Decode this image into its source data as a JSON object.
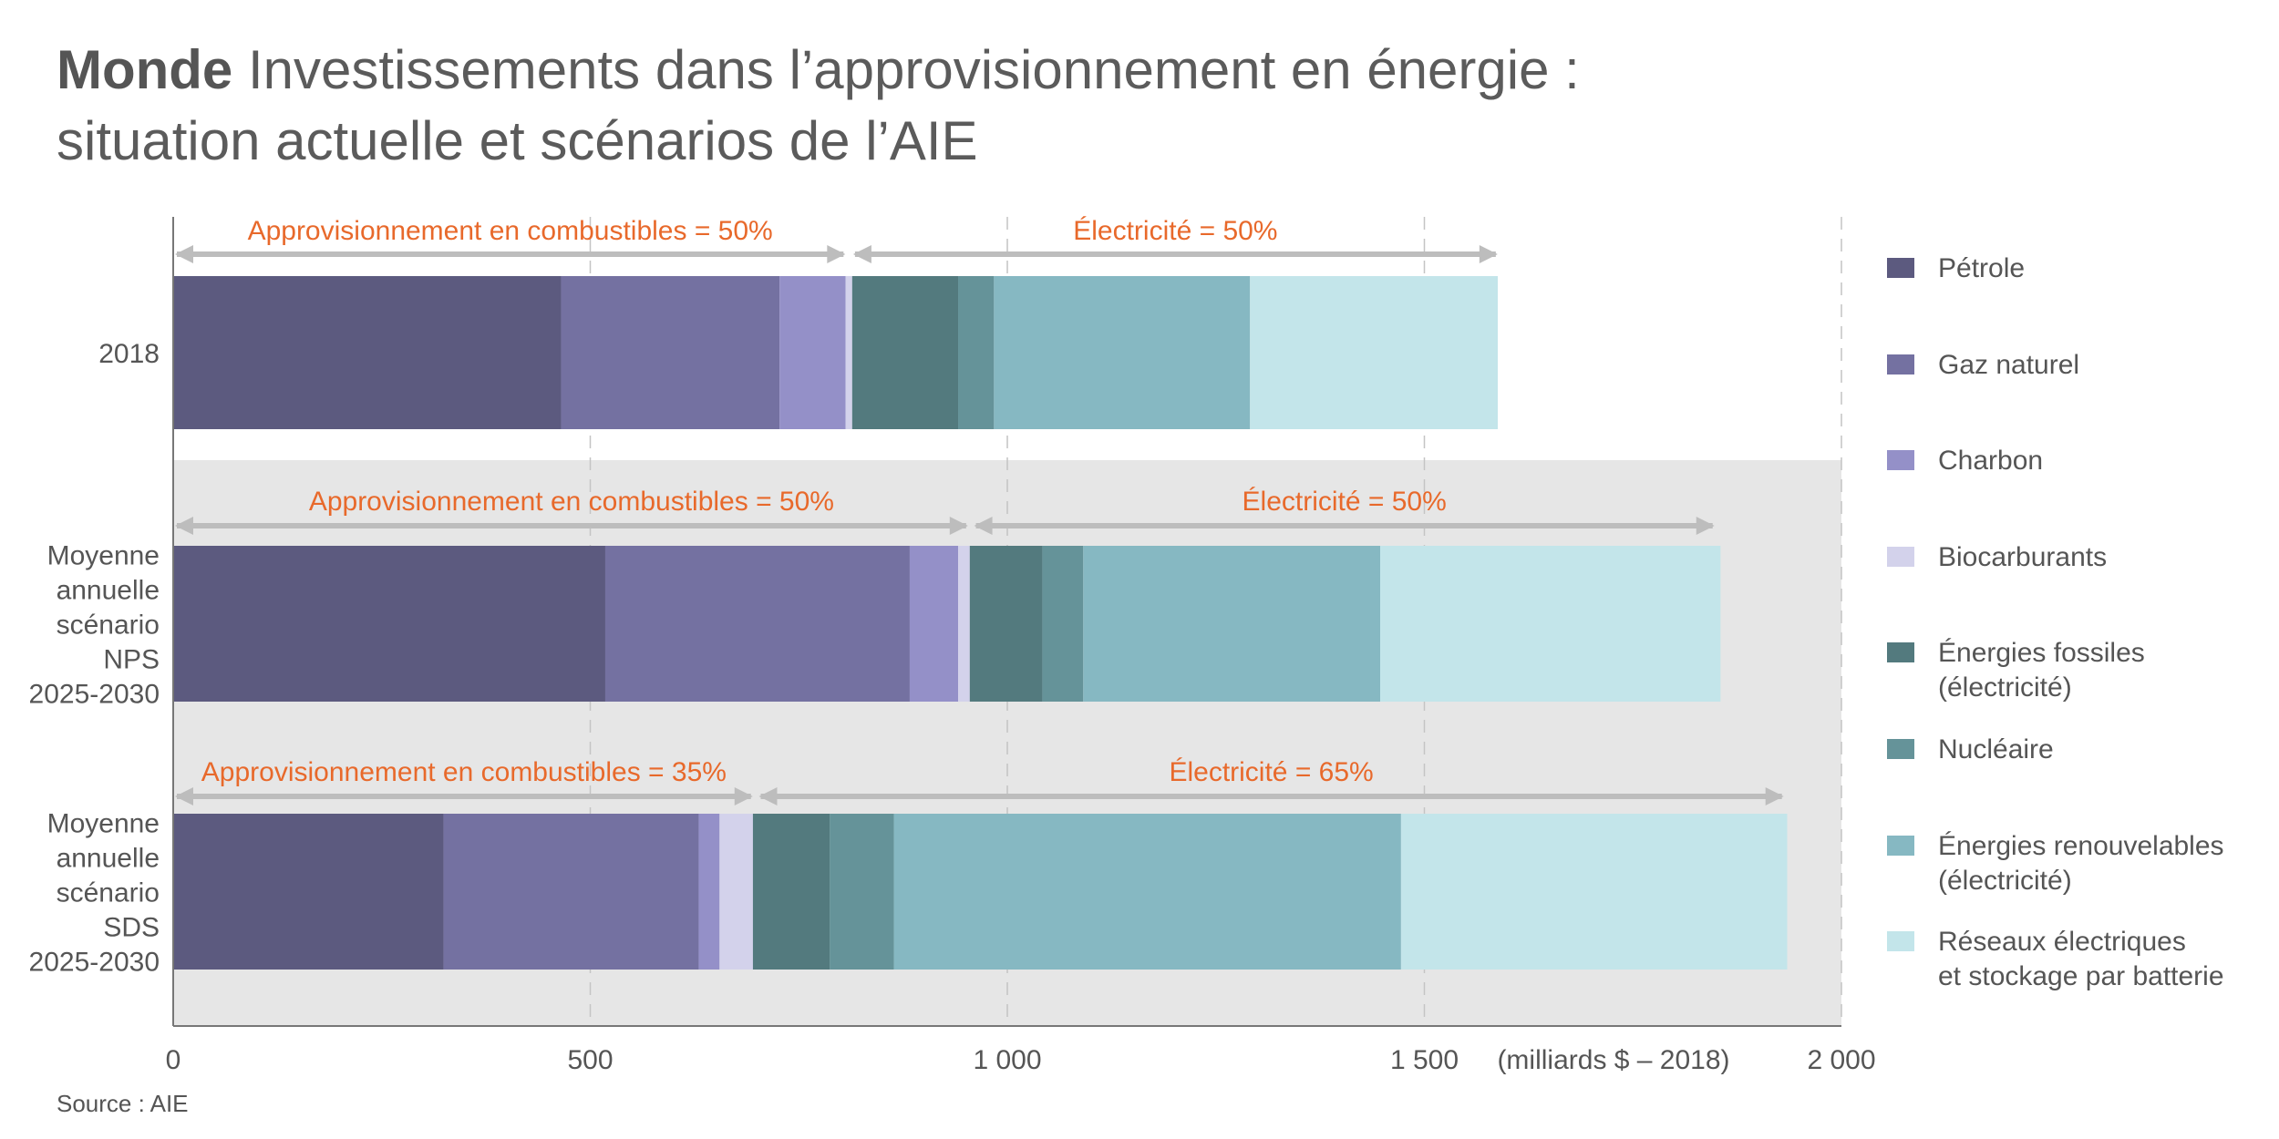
{
  "title": {
    "bold": "Monde",
    "line1": " Investissements dans l’approvisionnement en énergie :",
    "line2": "situation actuelle et scénarios de l’AIE"
  },
  "source": "Source  : AIE",
  "chart_data": {
    "type": "bar",
    "orientation": "horizontal",
    "stacked": true,
    "unit_label": "(milliards $ – 2018)",
    "xlim": [
      0,
      2000
    ],
    "x_ticks": [
      0,
      500,
      1000,
      1500,
      2000
    ],
    "x_tick_labels": [
      "0",
      "500",
      "1 000",
      "1 500",
      "2 000"
    ],
    "grid": "vertical dashed",
    "legend_position": "right",
    "categories": [
      {
        "label": "2018",
        "lines": [
          "2018"
        ]
      },
      {
        "label": "Moyenne annuelle scénario NPS 2025-2030",
        "lines": [
          "Moyenne",
          "annuelle",
          "scénario",
          "NPS",
          "2025-2030"
        ]
      },
      {
        "label": "Moyenne annuelle scénario SDS 2025-2030",
        "lines": [
          "Moyenne",
          "annuelle",
          "scénario",
          "SDS",
          "2025-2030"
        ]
      }
    ],
    "series": [
      {
        "name": "Pétrole",
        "color": "#5c5a7f",
        "values": [
          465,
          518,
          324
        ]
      },
      {
        "name": "Gaz naturel",
        "color": "#7471a1",
        "values": [
          262,
          365,
          306
        ]
      },
      {
        "name": "Charbon",
        "color": "#9490c8",
        "values": [
          79,
          58,
          25
        ]
      },
      {
        "name": "Biocarburants",
        "color": "#d3d2eb",
        "values": [
          8,
          14,
          40
        ]
      },
      {
        "name": "Énergies fossiles\n(électricité)",
        "color": "#537a7e",
        "values": [
          127,
          87,
          92
        ]
      },
      {
        "name": "Nucléaire",
        "color": "#659399",
        "values": [
          43,
          49,
          77
        ]
      },
      {
        "name": "Énergies renouvelables\n(électricité)",
        "color": "#86b8c2",
        "values": [
          307,
          356,
          608
        ]
      },
      {
        "name": "Réseaux électriques\net stockage par batterie",
        "color": "#c3e5ea",
        "values": [
          297,
          408,
          463
        ]
      }
    ],
    "annotations": [
      {
        "category": 0,
        "label": "Approvisionnement en combustibles = 50%",
        "from": 0,
        "to": 808
      },
      {
        "category": 0,
        "label": "Électricité = 50%",
        "from": 813,
        "to": 1590
      },
      {
        "category": 1,
        "label": "Approvisionnement en combustibles = 50%",
        "from": 0,
        "to": 955
      },
      {
        "category": 1,
        "label": "Électricité = 50%",
        "from": 958,
        "to": 1850
      },
      {
        "category": 2,
        "label": "Approvisionnement en combustibles = 35%",
        "from": 0,
        "to": 697
      },
      {
        "category": 2,
        "label": "Électricité = 65%",
        "from": 700,
        "to": 1933
      }
    ],
    "colors": {
      "annotation_text": "#e8692b",
      "arrow": "#bdbdbd",
      "band": "#e6e6e6",
      "grid": "#c4c4c4",
      "axis": "#777777"
    }
  }
}
